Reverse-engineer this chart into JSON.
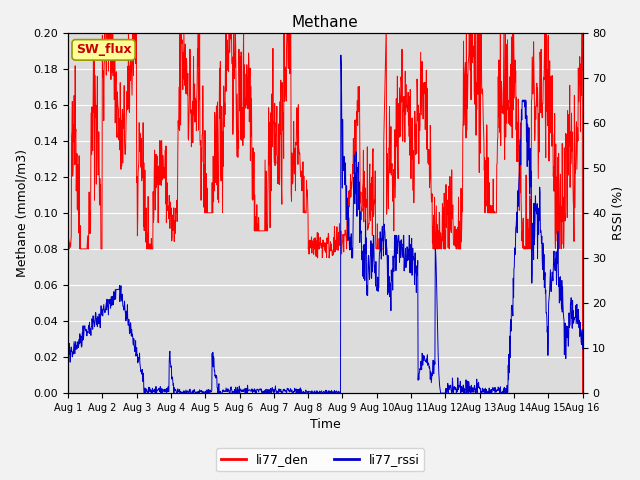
{
  "title": "Methane",
  "xlabel": "Time",
  "ylabel_left": "Methane (mmol/m3)",
  "ylabel_right": "RSSI (%)",
  "ylim_left": [
    0.0,
    0.2
  ],
  "ylim_right": [
    0,
    80
  ],
  "yticks_left": [
    0.0,
    0.02,
    0.04,
    0.06,
    0.08,
    0.1,
    0.12,
    0.14,
    0.16,
    0.18,
    0.2
  ],
  "yticks_right": [
    0,
    10,
    20,
    30,
    40,
    50,
    60,
    70,
    80
  ],
  "xtick_labels": [
    "Aug 1",
    "Aug 2",
    "Aug 3",
    "Aug 4",
    "Aug 5",
    "Aug 6",
    "Aug 7",
    "Aug 8",
    "Aug 9",
    "Aug 10",
    "Aug 11",
    "Aug 12",
    "Aug 13",
    "Aug 14",
    "Aug 15",
    "Aug 16"
  ],
  "color_den": "#ff0000",
  "color_rssi": "#0000cc",
  "legend_labels": [
    "li77_den",
    "li77_rssi"
  ],
  "figure_bg": "#f2f2f2",
  "plot_bg": "#dcdcdc",
  "grid_color": "#ffffff",
  "annotation_text": "SW_flux",
  "annotation_bg": "#ffff99",
  "annotation_border": "#999900",
  "annotation_text_color": "#cc0000",
  "title_fontsize": 11,
  "axis_fontsize": 9,
  "tick_fontsize": 8,
  "legend_fontsize": 9
}
